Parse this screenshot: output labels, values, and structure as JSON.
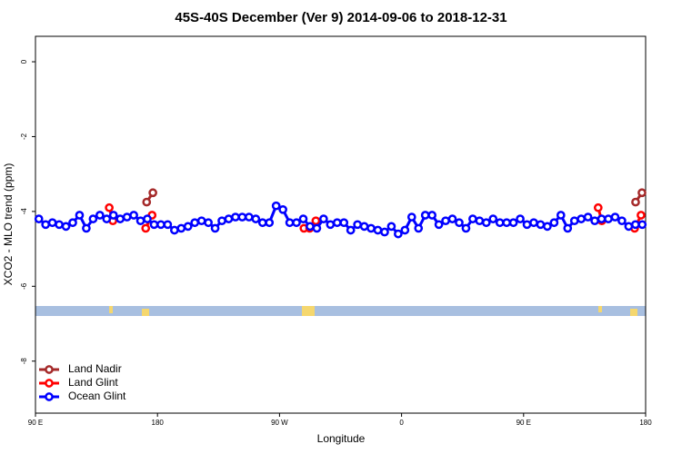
{
  "chart_data": {
    "type": "line",
    "title": "45S-40S December (Ver 9)   2014-09-06 to 2018-12-31",
    "x_label": "Longitude",
    "y_label": "XCO2 - MLO trend (ppm)",
    "xlim": [
      90,
      540
    ],
    "ylim": [
      -9.39,
      0.68
    ],
    "xticks": [
      {
        "value": 90,
        "label": "90 E"
      },
      180,
      {
        "value": 270,
        "label": "90 W"
      },
      {
        "value": 360,
        "label": "0"
      },
      {
        "value": 450,
        "label": "90 E"
      },
      {
        "value": 540,
        "label": "180"
      }
    ],
    "yticks": [
      0,
      -2,
      -4,
      -6,
      -8
    ],
    "legend": "bottom-left",
    "series": [
      {
        "name": "Land Nadir",
        "color": "#a52a2a",
        "x": [
          172,
          176.6,
          532.6,
          537.3
        ],
        "values": [
          -3.75,
          -3.5,
          -3.75,
          -3.5
        ]
      },
      {
        "name": "Land Glint",
        "color": "#ff0000",
        "x": [
          144.4,
          147.1,
          171.3,
          176,
          288,
          292.2,
          296.8,
          505,
          507.7,
          531.9,
          536.6
        ],
        "values": [
          -3.9,
          -4.25,
          -4.45,
          -4.1,
          -4.45,
          -4.45,
          -4.25,
          -3.9,
          -4.25,
          -4.45,
          -4.1
        ]
      },
      {
        "name": "Ocean Glint",
        "color": "#0000ff",
        "x": [
          92.5,
          97.5,
          102.5,
          107.5,
          112.5,
          117.5,
          122.5,
          127.5,
          132.5,
          137.5,
          142.5,
          147.5,
          152.5,
          157.5,
          162.5,
          167.5,
          172.5,
          177.5,
          182.5,
          187.5,
          192.5,
          197.5,
          202.5,
          207.5,
          212.5,
          217.5,
          222.5,
          227.5,
          232.5,
          237.5,
          242.5,
          247.5,
          252.5,
          257.5,
          262.5,
          267.5,
          272.5,
          277.5,
          282.5,
          287.5,
          292.5,
          297.5,
          302.5,
          307.5,
          312.5,
          317.5,
          322.5,
          327.5,
          332.5,
          337.5,
          342.5,
          347.5,
          352.5,
          357.5,
          362.5,
          367.5,
          372.5,
          377.5,
          382.5,
          387.5,
          392.5,
          397.5,
          402.5,
          407.5,
          412.5,
          417.5,
          422.5,
          427.5,
          432.5,
          437.5,
          442.5,
          447.5,
          452.5,
          457.5,
          462.5,
          467.5,
          472.5,
          477.5,
          482.5,
          487.5,
          492.5,
          497.5,
          502.5,
          507.5,
          512.5,
          517.5,
          522.5,
          527.5,
          532.5,
          537.5
        ],
        "values": [
          -4.2,
          -4.35,
          -4.3,
          -4.35,
          -4.4,
          -4.3,
          -4.1,
          -4.45,
          -4.2,
          -4.1,
          -4.2,
          -4.1,
          -4.2,
          -4.15,
          -4.1,
          -4.25,
          -4.2,
          -4.35,
          -4.35,
          -4.35,
          -4.5,
          -4.45,
          -4.4,
          -4.3,
          -4.25,
          -4.3,
          -4.45,
          -4.25,
          -4.2,
          -4.15,
          -4.15,
          -4.15,
          -4.2,
          -4.3,
          -4.3,
          -3.85,
          -3.95,
          -4.3,
          -4.3,
          -4.2,
          -4.4,
          -4.45,
          -4.2,
          -4.35,
          -4.3,
          -4.3,
          -4.5,
          -4.35,
          -4.4,
          -4.45,
          -4.5,
          -4.55,
          -4.4,
          -4.6,
          -4.5,
          -4.15,
          -4.45,
          -4.1,
          -4.1,
          -4.35,
          -4.25,
          -4.2,
          -4.3,
          -4.45,
          -4.2,
          -4.25,
          -4.3,
          -4.2,
          -4.3,
          -4.3,
          -4.3,
          -4.2,
          -4.35,
          -4.3,
          -4.35,
          -4.4,
          -4.3,
          -4.1,
          -4.45,
          -4.25,
          -4.2,
          -4.15,
          -4.25,
          -4.2,
          -4.2,
          -4.15,
          -4.25,
          -4.4,
          -4.35,
          -4.35
        ]
      }
    ]
  }
}
